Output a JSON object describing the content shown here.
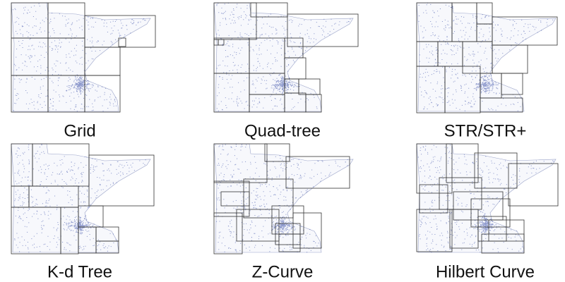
{
  "panels": [
    {
      "label": "Grid"
    },
    {
      "label": "Quad-tree"
    },
    {
      "label": "STR/STR+"
    },
    {
      "label": "K-d Tree"
    },
    {
      "label": "Z-Curve"
    },
    {
      "label": "Hilbert Curve"
    }
  ]
}
